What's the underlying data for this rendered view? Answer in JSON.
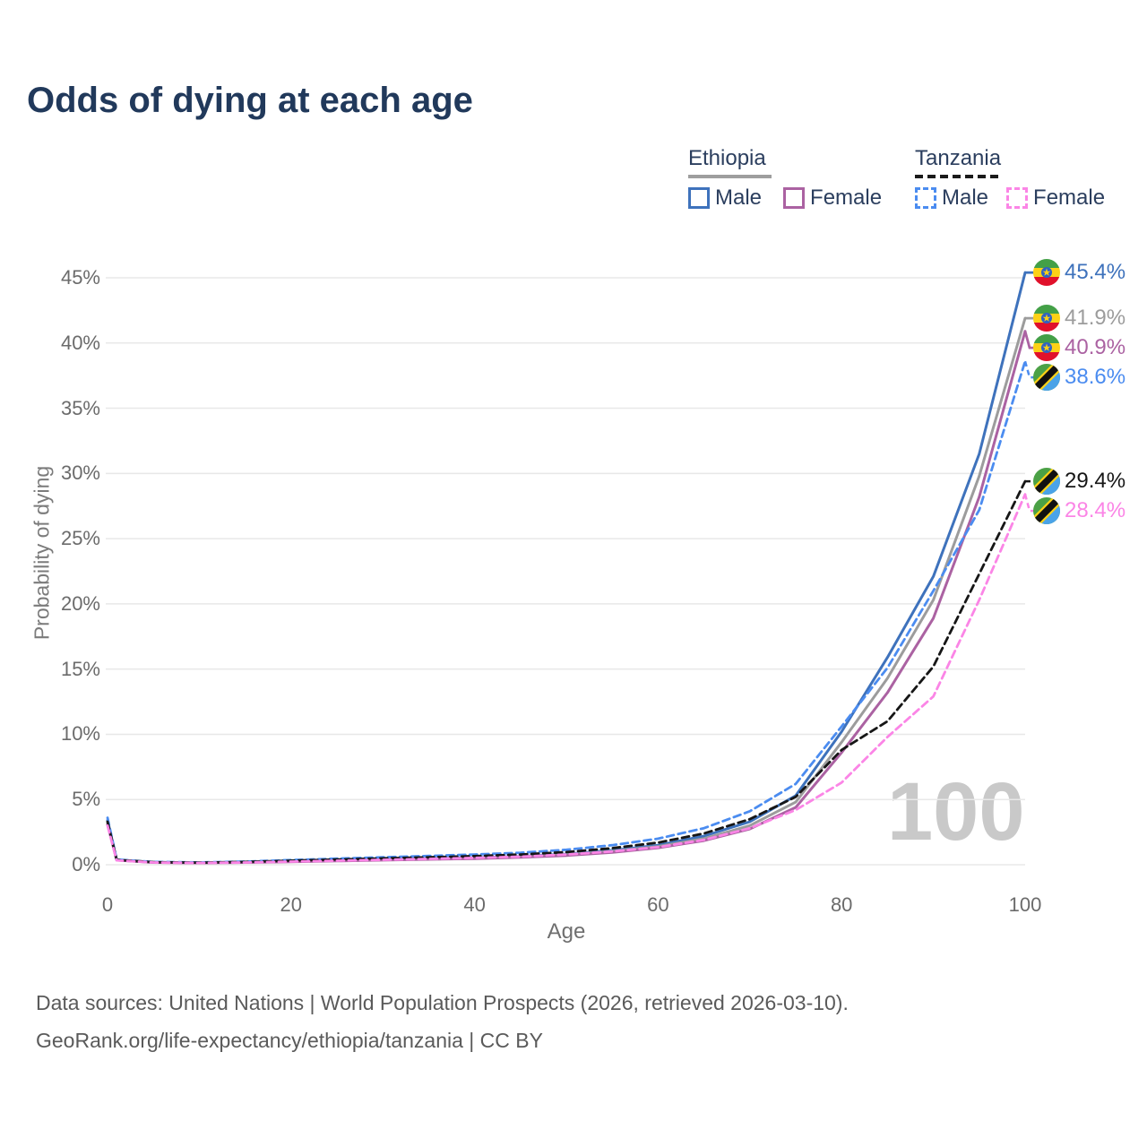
{
  "title": "Odds of dying at each age",
  "legend": {
    "ethiopia": {
      "title": "Ethiopia",
      "male": "Male",
      "female": "Female"
    },
    "tanzania": {
      "title": "Tanzania",
      "male": "Male",
      "female": "Female"
    }
  },
  "axes": {
    "y_title": "Probability of dying",
    "x_title": "Age",
    "y_ticks": [
      "0%",
      "5%",
      "10%",
      "15%",
      "20%",
      "25%",
      "30%",
      "35%",
      "40%",
      "45%"
    ],
    "x_ticks": [
      "0",
      "20",
      "40",
      "60",
      "80",
      "100"
    ]
  },
  "watermark": "100",
  "footer": {
    "line1": "Data sources: United Nations | World Population Prospects (2026, retrieved 2026-03-10).",
    "line2": "GeoRank.org/life-expectancy/ethiopia/tanzania | CC BY"
  },
  "chart_data": {
    "type": "line",
    "xlabel": "Age",
    "ylabel": "Probability of dying",
    "xlim": [
      0,
      100
    ],
    "ylim": [
      0,
      47
    ],
    "grid": "horizontal",
    "x": [
      0,
      1,
      5,
      10,
      15,
      20,
      25,
      30,
      35,
      40,
      45,
      50,
      55,
      60,
      65,
      70,
      75,
      80,
      85,
      90,
      95,
      100
    ],
    "series": [
      {
        "name": "Ethiopia Male",
        "country": "Ethiopia",
        "sex": "Male",
        "flag": "ethiopia",
        "color": "#3e72bc",
        "dashed": false,
        "end_label": "45.4%",
        "end_value": 45.4,
        "values": [
          3.4,
          0.38,
          0.19,
          0.16,
          0.2,
          0.28,
          0.35,
          0.41,
          0.47,
          0.54,
          0.64,
          0.82,
          1.1,
          1.5,
          2.2,
          3.3,
          5.3,
          10.2,
          15.9,
          22.1,
          31.5,
          45.4
        ]
      },
      {
        "name": "Ethiopia Both sexes",
        "country": "Ethiopia",
        "sex": "Both",
        "flag": "ethiopia",
        "color": "#9c9c9c",
        "dashed": false,
        "end_label": "41.9%",
        "end_value": 41.9,
        "values": [
          3.3,
          0.37,
          0.18,
          0.15,
          0.19,
          0.26,
          0.33,
          0.39,
          0.45,
          0.51,
          0.6,
          0.77,
          1.03,
          1.4,
          2.0,
          3.0,
          4.8,
          9.4,
          14.3,
          20.3,
          29.8,
          41.9
        ]
      },
      {
        "name": "Ethiopia Female",
        "country": "Ethiopia",
        "sex": "Female",
        "flag": "ethiopia",
        "color": "#ab62a2",
        "dashed": false,
        "end_label": "40.9%",
        "end_value": 40.9,
        "values": [
          3.1,
          0.35,
          0.17,
          0.14,
          0.17,
          0.23,
          0.29,
          0.35,
          0.41,
          0.47,
          0.56,
          0.71,
          0.95,
          1.3,
          1.85,
          2.75,
          4.4,
          8.6,
          13.2,
          18.9,
          28.2,
          40.9
        ]
      },
      {
        "name": "Tanzania Male",
        "country": "Tanzania",
        "sex": "Male",
        "flag": "tanzania",
        "color": "#4b8cf0",
        "dashed": true,
        "end_label": "38.6%",
        "end_value": 38.6,
        "values": [
          3.6,
          0.4,
          0.21,
          0.18,
          0.24,
          0.36,
          0.47,
          0.57,
          0.67,
          0.78,
          0.92,
          1.15,
          1.5,
          2.0,
          2.8,
          4.1,
          6.2,
          10.6,
          15.1,
          21.0,
          27.2,
          38.6
        ]
      },
      {
        "name": "Tanzania Both sexes",
        "country": "Tanzania",
        "sex": "Both",
        "flag": "tanzania",
        "color": "#161616",
        "dashed": true,
        "end_label": "29.4%",
        "end_value": 29.4,
        "values": [
          3.3,
          0.37,
          0.19,
          0.16,
          0.21,
          0.31,
          0.4,
          0.49,
          0.57,
          0.66,
          0.78,
          0.97,
          1.27,
          1.7,
          2.4,
          3.5,
          5.2,
          8.8,
          11.0,
          15.2,
          22.3,
          29.4
        ]
      },
      {
        "name": "Tanzania Female",
        "country": "Tanzania",
        "sex": "Female",
        "flag": "tanzania",
        "color": "#fb85e6",
        "dashed": true,
        "end_label": "28.4%",
        "end_value": 28.4,
        "values": [
          3.0,
          0.34,
          0.17,
          0.14,
          0.17,
          0.24,
          0.31,
          0.38,
          0.45,
          0.52,
          0.62,
          0.78,
          1.02,
          1.35,
          1.9,
          2.8,
          4.2,
          6.3,
          9.8,
          12.9,
          20.3,
          28.4
        ]
      }
    ]
  }
}
